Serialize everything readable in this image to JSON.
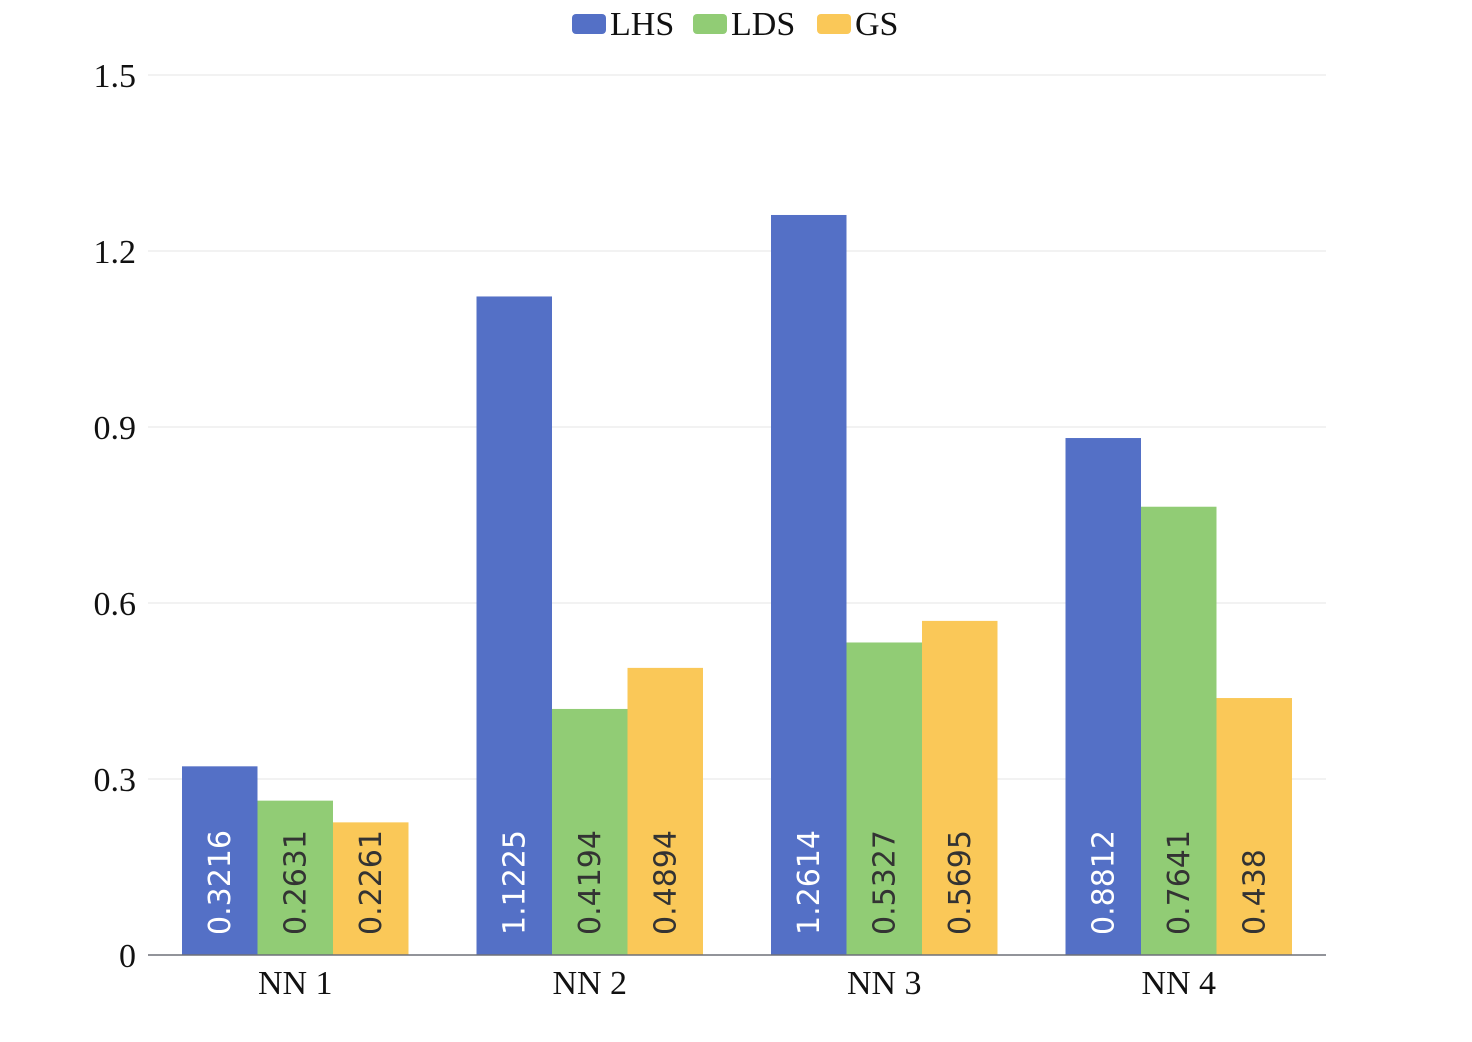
{
  "chart_data": {
    "type": "bar",
    "title": "",
    "xlabel": "",
    "ylabel": "",
    "categories": [
      "NN 1",
      "NN 2",
      "NN 3",
      "NN 4"
    ],
    "series": [
      {
        "name": "LHS",
        "values": [
          0.3216,
          1.1225,
          1.2614,
          0.8812
        ],
        "labels": [
          "0.3216",
          "1.1225",
          "1.2614",
          "0.8812"
        ],
        "color": "#5470c6",
        "label_color": "#ffffff"
      },
      {
        "name": "LDS",
        "values": [
          0.2631,
          0.4194,
          0.5327,
          0.7641
        ],
        "labels": [
          "0.2631",
          "0.4194",
          "0.5327",
          "0.7641"
        ],
        "color": "#91cc75",
        "label_color": "#333333"
      },
      {
        "name": "GS",
        "values": [
          0.2261,
          0.4894,
          0.5695,
          0.438
        ],
        "labels": [
          "0.2261",
          "0.4894",
          "0.5695",
          "0.438"
        ],
        "color": "#fac858",
        "label_color": "#333333"
      }
    ],
    "ylim": [
      0,
      1.5
    ],
    "yticks": [
      0,
      0.3,
      0.6,
      0.9,
      1.2,
      1.5
    ],
    "ytick_labels": [
      "0",
      "0.3",
      "0.6",
      "0.9",
      "1.2",
      "1.5"
    ],
    "grid": true,
    "legend_position": "top-center",
    "colors": {
      "grid": "#e6e6e6",
      "axis": "#6e7079",
      "text": "#111111"
    }
  }
}
